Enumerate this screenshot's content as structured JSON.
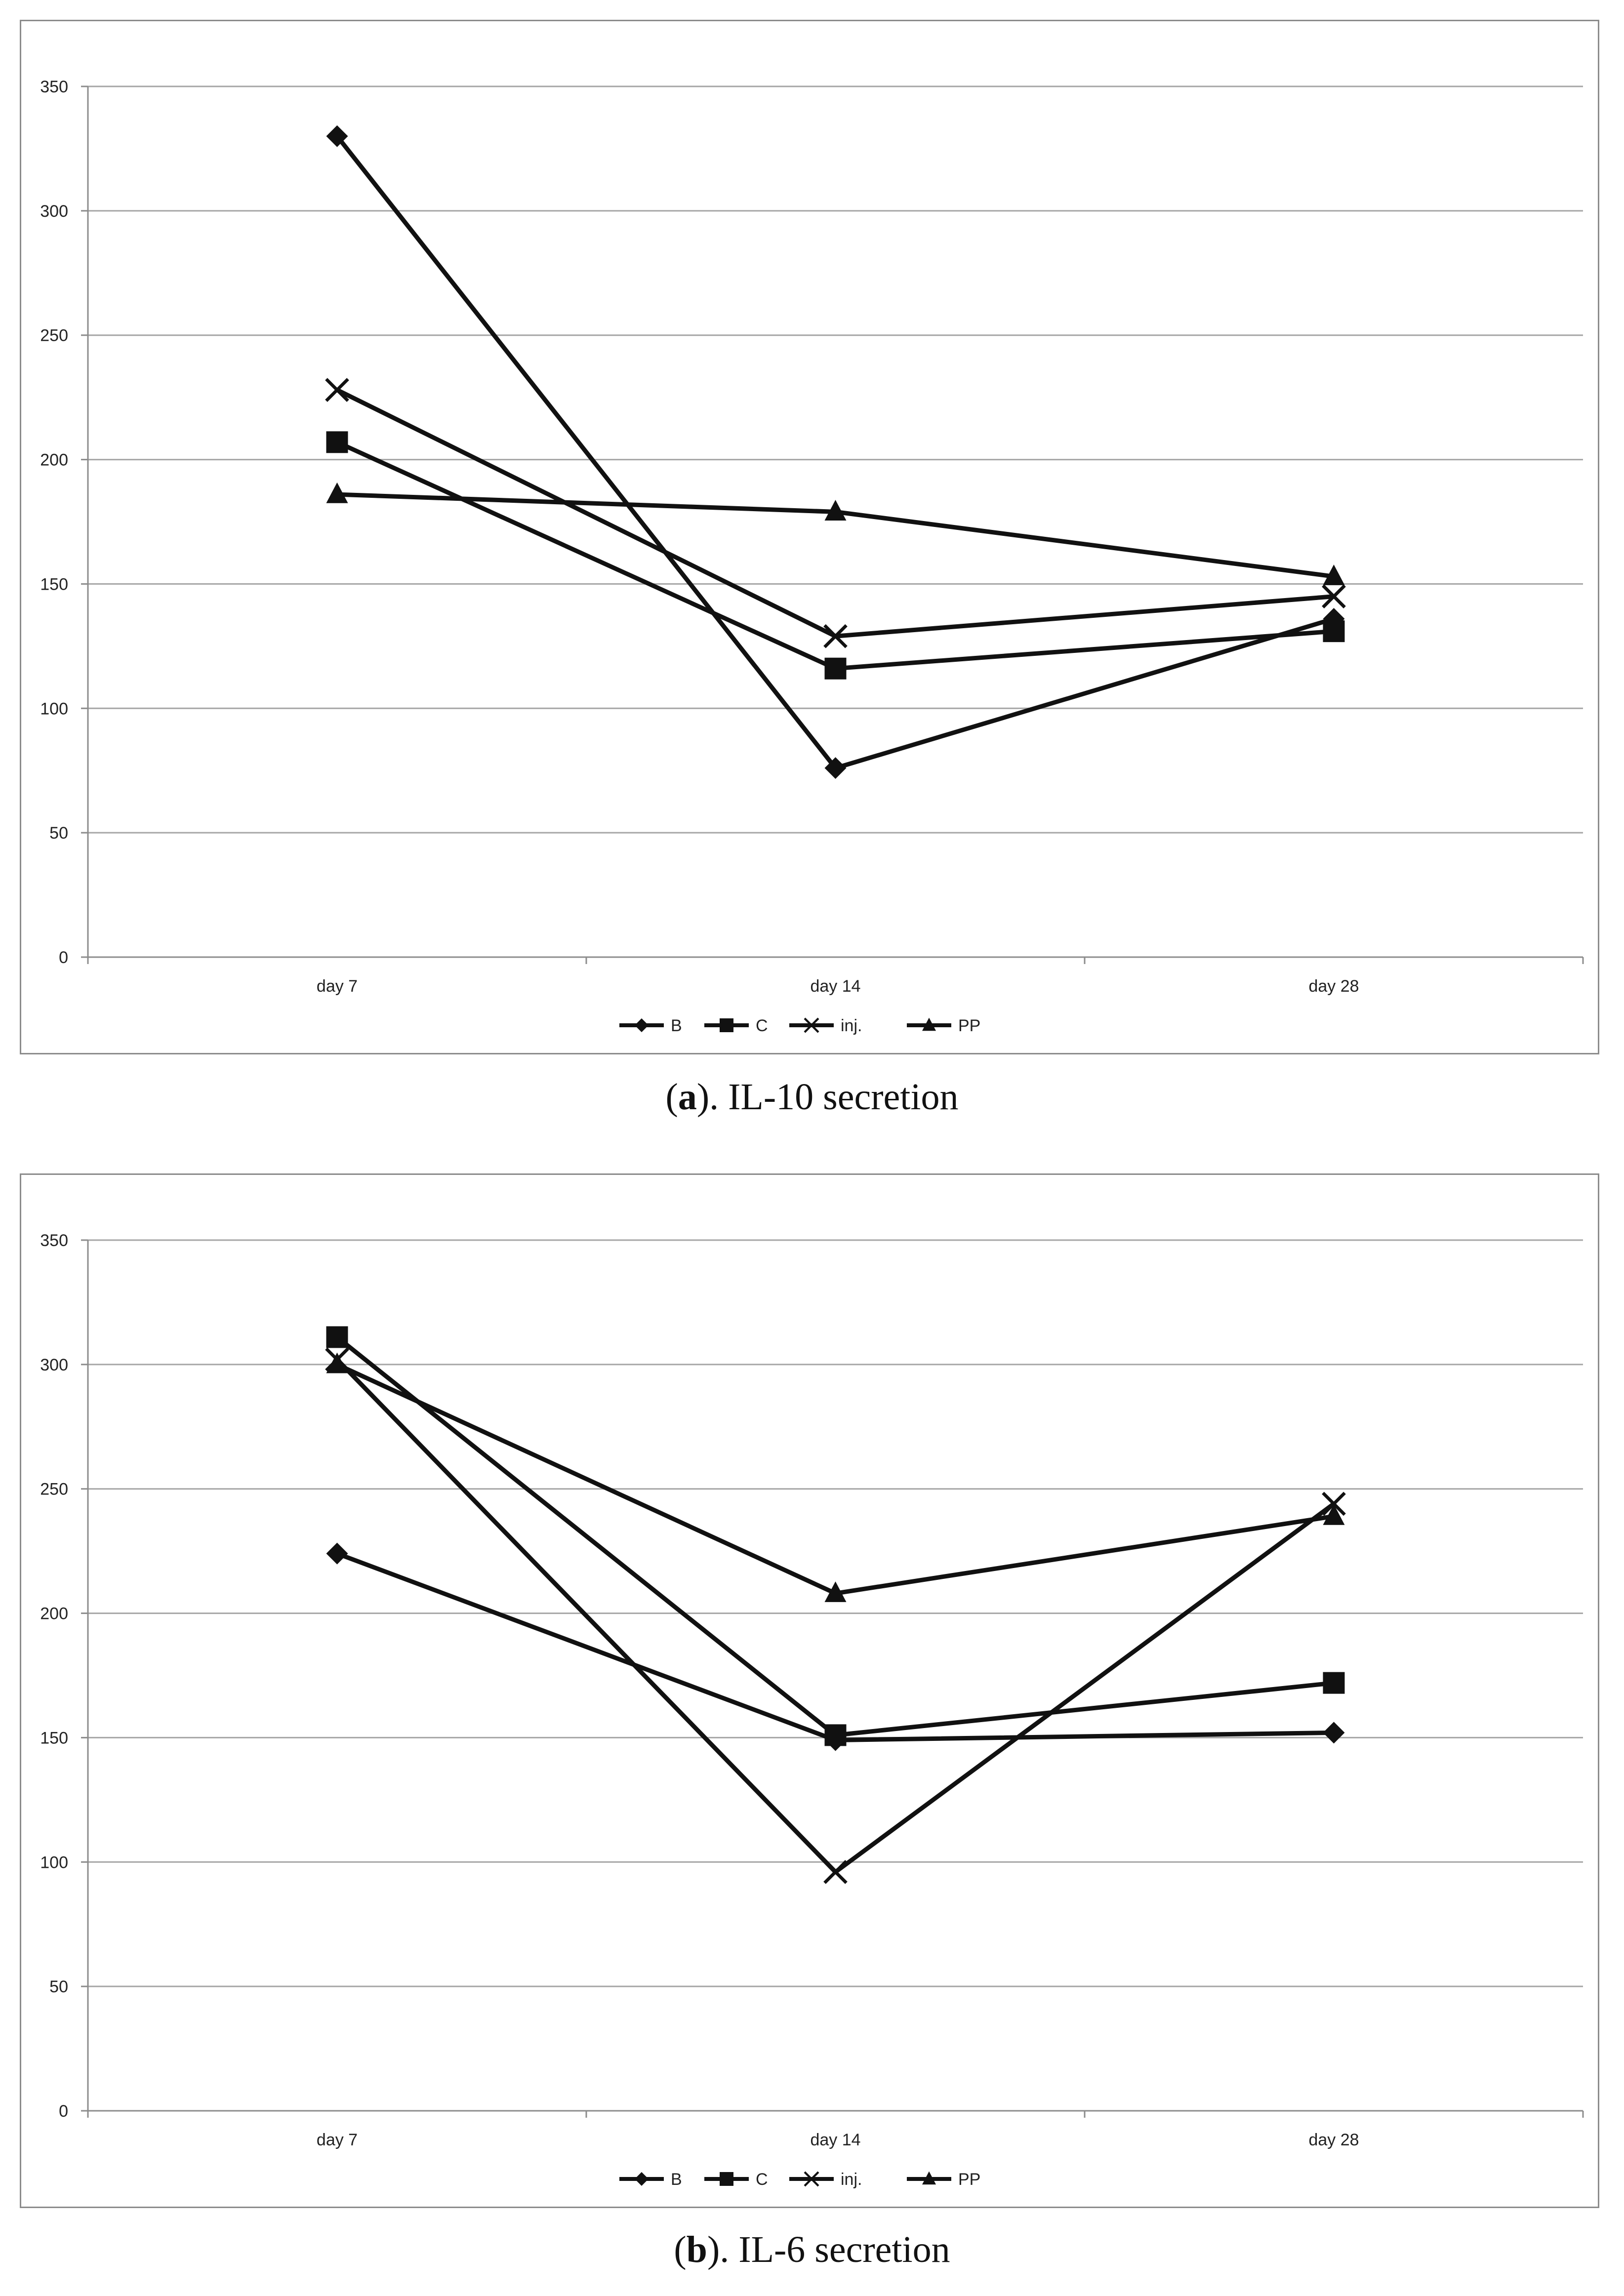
{
  "colors": {
    "line": "#111111",
    "grid": "#a6a6a6",
    "axis": "#8c8c8c",
    "text": "#222222"
  },
  "chart_data": [
    {
      "type": "line",
      "title": "IL-10 secretion",
      "caption_letter": "a",
      "caption_text": "). IL-10 secretion",
      "categories": [
        "day 7",
        "day 14",
        "day 28"
      ],
      "ylim": [
        0,
        350
      ],
      "yticks": [
        0,
        50,
        100,
        150,
        200,
        250,
        300,
        350
      ],
      "grid": true,
      "legend_position": "bottom",
      "series": [
        {
          "name": "B",
          "marker": "diamond",
          "values": [
            330,
            76,
            136
          ]
        },
        {
          "name": "C",
          "marker": "square",
          "values": [
            207,
            116,
            131
          ]
        },
        {
          "name": "inj.",
          "marker": "x",
          "values": [
            228,
            129,
            145
          ]
        },
        {
          "name": "PP",
          "marker": "triangle",
          "values": [
            186,
            179,
            153
          ]
        }
      ]
    },
    {
      "type": "line",
      "title": "IL-6 secretion",
      "caption_letter": "b",
      "caption_text": "). IL-6 secretion",
      "categories": [
        "day 7",
        "day 14",
        "day 28"
      ],
      "ylim": [
        0,
        350
      ],
      "yticks": [
        0,
        50,
        100,
        150,
        200,
        250,
        300,
        350
      ],
      "grid": true,
      "legend_position": "bottom",
      "series": [
        {
          "name": "B",
          "marker": "diamond",
          "values": [
            224,
            149,
            152
          ]
        },
        {
          "name": "C",
          "marker": "square",
          "values": [
            311,
            151,
            172
          ]
        },
        {
          "name": "inj.",
          "marker": "x",
          "values": [
            302,
            96,
            244
          ]
        },
        {
          "name": "PP",
          "marker": "triangle",
          "values": [
            300,
            208,
            239
          ]
        }
      ]
    }
  ]
}
